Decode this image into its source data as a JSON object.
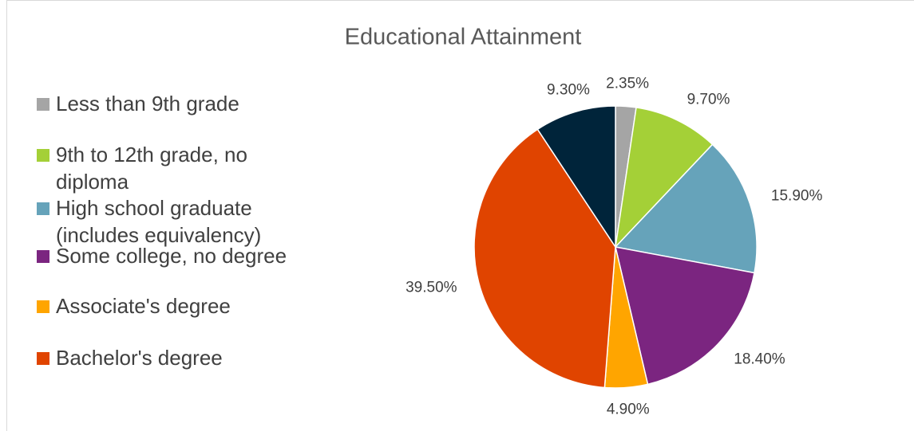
{
  "chart_data": {
    "type": "pie",
    "title": "Educational Attainment",
    "categories": [
      "Less than 9th grade",
      "9th to 12th grade, no diploma",
      "High school graduate (includes equivalency)",
      "Some college, no degree",
      "Associate's degree",
      "Bachelor's degree",
      null
    ],
    "values": [
      2.35,
      9.7,
      15.9,
      18.4,
      4.9,
      39.5,
      9.3
    ],
    "value_labels": [
      "2.35%",
      "9.70%",
      "15.90%",
      "18.40%",
      "4.90%",
      "39.50%",
      "9.30%"
    ],
    "colors": [
      "#a5a5a5",
      "#a4d037",
      "#66a3ba",
      "#7b2580",
      "#ffa500",
      "#e04400",
      "#00243a"
    ],
    "legend": "left"
  }
}
